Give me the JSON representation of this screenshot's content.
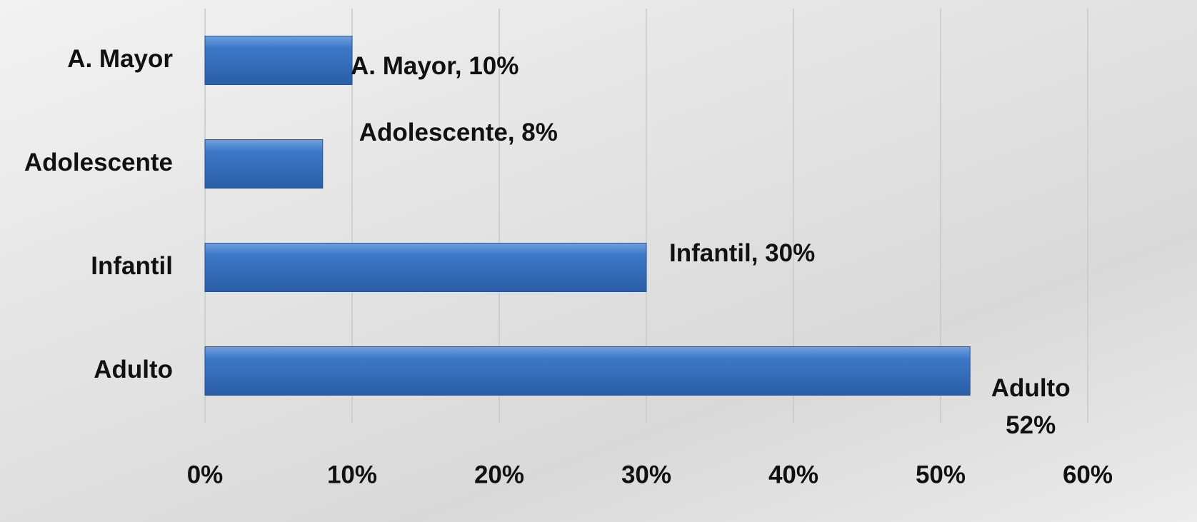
{
  "chart_data": {
    "type": "hbar",
    "categories": [
      "A. Mayor",
      "Adolescente",
      "Infantil",
      "Adulto"
    ],
    "values": [
      10,
      8,
      30,
      52
    ],
    "value_labels": [
      "A. Mayor, 10%",
      "Adolescente, 8%",
      "Infantil, 30%",
      "Adulto 52%"
    ],
    "color": "#3c78c8",
    "xlim": [
      0,
      60
    ],
    "xticks": [
      {
        "value": 0,
        "label": "0%"
      },
      {
        "value": 10,
        "label": "10%"
      },
      {
        "value": 20,
        "label": "20%"
      },
      {
        "value": 30,
        "label": "30%"
      },
      {
        "value": 40,
        "label": "40%"
      },
      {
        "value": 50,
        "label": "50%"
      },
      {
        "value": 60,
        "label": "60%"
      }
    ],
    "grid": true
  }
}
